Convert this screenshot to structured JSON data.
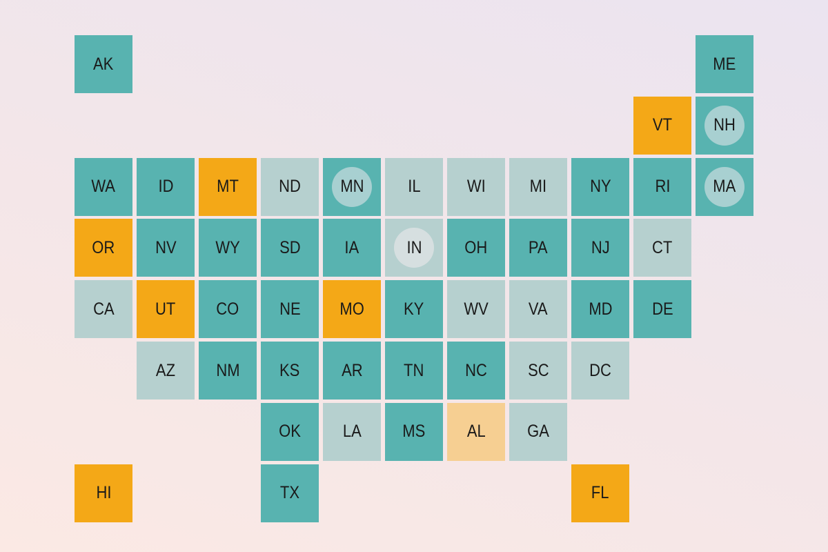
{
  "colors": {
    "teal": "#58b3b0",
    "orange": "#f4a817",
    "light_orange": "#f6cf92",
    "light": "#b6d0cf",
    "circle_on_teal": "#a8d0d1",
    "circle_on_light": "#d6dfe0"
  },
  "states": [
    {
      "code": "AK",
      "cat": "teal"
    },
    {
      "code": "ME",
      "cat": "teal"
    },
    {
      "code": "VT",
      "cat": "orange"
    },
    {
      "code": "NH",
      "cat": "teal",
      "marked": true
    },
    {
      "code": "WA",
      "cat": "teal"
    },
    {
      "code": "ID",
      "cat": "teal"
    },
    {
      "code": "MT",
      "cat": "orange"
    },
    {
      "code": "ND",
      "cat": "light"
    },
    {
      "code": "MN",
      "cat": "teal",
      "marked": true
    },
    {
      "code": "IL",
      "cat": "light"
    },
    {
      "code": "WI",
      "cat": "light"
    },
    {
      "code": "MI",
      "cat": "light"
    },
    {
      "code": "NY",
      "cat": "teal"
    },
    {
      "code": "RI",
      "cat": "teal"
    },
    {
      "code": "MA",
      "cat": "teal",
      "marked": true
    },
    {
      "code": "OR",
      "cat": "orange"
    },
    {
      "code": "NV",
      "cat": "teal"
    },
    {
      "code": "WY",
      "cat": "teal"
    },
    {
      "code": "SD",
      "cat": "teal"
    },
    {
      "code": "IA",
      "cat": "teal"
    },
    {
      "code": "IN",
      "cat": "light",
      "marked": true
    },
    {
      "code": "OH",
      "cat": "teal"
    },
    {
      "code": "PA",
      "cat": "teal"
    },
    {
      "code": "NJ",
      "cat": "teal"
    },
    {
      "code": "CT",
      "cat": "light"
    },
    {
      "code": "CA",
      "cat": "light"
    },
    {
      "code": "UT",
      "cat": "orange"
    },
    {
      "code": "CO",
      "cat": "teal"
    },
    {
      "code": "NE",
      "cat": "teal"
    },
    {
      "code": "MO",
      "cat": "orange"
    },
    {
      "code": "KY",
      "cat": "teal"
    },
    {
      "code": "WV",
      "cat": "light"
    },
    {
      "code": "VA",
      "cat": "light"
    },
    {
      "code": "MD",
      "cat": "teal"
    },
    {
      "code": "DE",
      "cat": "teal"
    },
    {
      "code": "AZ",
      "cat": "light"
    },
    {
      "code": "NM",
      "cat": "teal"
    },
    {
      "code": "KS",
      "cat": "teal"
    },
    {
      "code": "AR",
      "cat": "teal"
    },
    {
      "code": "TN",
      "cat": "teal"
    },
    {
      "code": "NC",
      "cat": "teal"
    },
    {
      "code": "SC",
      "cat": "light"
    },
    {
      "code": "DC",
      "cat": "light"
    },
    {
      "code": "OK",
      "cat": "teal"
    },
    {
      "code": "LA",
      "cat": "light"
    },
    {
      "code": "MS",
      "cat": "teal"
    },
    {
      "code": "AL",
      "cat": "light_orange"
    },
    {
      "code": "GA",
      "cat": "light"
    },
    {
      "code": "HI",
      "cat": "orange"
    },
    {
      "code": "TX",
      "cat": "teal"
    },
    {
      "code": "FL",
      "cat": "orange"
    }
  ]
}
